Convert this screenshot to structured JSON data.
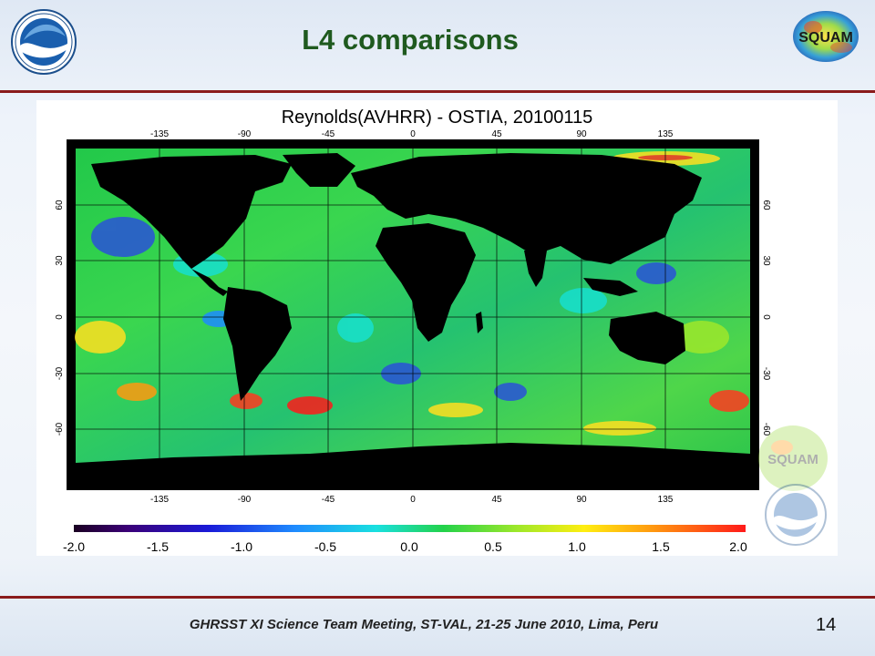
{
  "slide": {
    "title": "L4 comparisons",
    "footer": "GHRSST XI Science Team Meeting, ST-VAL, 21-25 June 2010, Lima, Peru",
    "page_number": "14"
  },
  "logos": {
    "left": "noaa-logo",
    "right": "squam-logo",
    "right_text": "SQUAM",
    "watermark_text": "SQUAM"
  },
  "figure": {
    "title": "Reynolds(AVHRR) - OSTIA, 20100115",
    "lon_ticks": [
      "-135",
      "-90",
      "-45",
      "0",
      "45",
      "90",
      "135"
    ],
    "lat_ticks": [
      "60",
      "30",
      "0",
      "-30",
      "-60"
    ],
    "colorbar_ticks": [
      "-2.0",
      "-1.5",
      "-1.0",
      "-0.5",
      "0.0",
      "0.5",
      "1.0",
      "1.5",
      "2.0"
    ]
  },
  "chart_data": {
    "type": "heatmap",
    "title": "Reynolds(AVHRR) - OSTIA, 20100115",
    "xlabel": "",
    "ylabel": "",
    "x_ticks": [
      -135,
      -90,
      -45,
      0,
      45,
      90,
      135
    ],
    "y_ticks": [
      60,
      30,
      0,
      -30,
      -60
    ],
    "xlim": [
      -180,
      180
    ],
    "ylim": [
      -90,
      90
    ],
    "colorbar": {
      "min": -2.0,
      "max": 2.0,
      "ticks": [
        -2.0,
        -1.5,
        -1.0,
        -0.5,
        0.0,
        0.5,
        1.0,
        1.5,
        2.0
      ]
    },
    "land_color": "#000000",
    "grid": true
  },
  "colors": {
    "rule": "#8a1b1b",
    "title": "#1f5a1f"
  }
}
